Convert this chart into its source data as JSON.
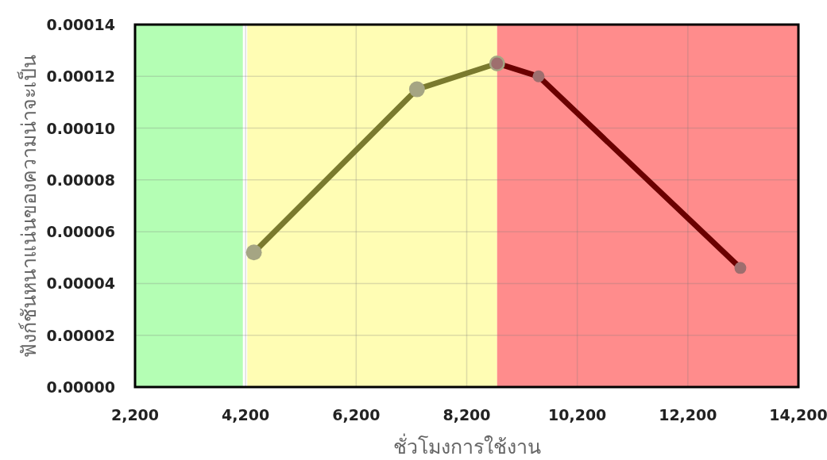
{
  "chart_data": {
    "type": "line",
    "xlabel": "ชั่วโมงการใช้งาน",
    "ylabel": "ฟังก์ชันหนาแน่นของความน่าจะเป็น",
    "series": [
      {
        "color": "#7a7a2e",
        "x": [
          4350,
          7300,
          8750
        ],
        "values": [
          5.2e-05,
          0.000115,
          0.000125
        ]
      },
      {
        "color": "#6b0000",
        "x": [
          8750,
          9500,
          13150
        ],
        "values": [
          0.000125,
          0.00012,
          4.6e-05
        ]
      }
    ],
    "xlim": [
      2200,
      14200
    ],
    "ylim": [
      0,
      0.00014
    ],
    "xticks": [
      {
        "value": 2200,
        "label": "2,200"
      },
      {
        "value": 4200,
        "label": "4,200"
      },
      {
        "value": 6200,
        "label": "6,200"
      },
      {
        "value": 8200,
        "label": "8,200"
      },
      {
        "value": 10200,
        "label": "10,200"
      },
      {
        "value": 12200,
        "label": "12,200"
      },
      {
        "value": 14200,
        "label": "14,200"
      }
    ],
    "yticks": [
      {
        "value": 0,
        "label": "0.00000"
      },
      {
        "value": 2e-05,
        "label": "0.00002"
      },
      {
        "value": 4e-05,
        "label": "0.00004"
      },
      {
        "value": 6e-05,
        "label": "0.00006"
      },
      {
        "value": 8e-05,
        "label": "0.00008"
      },
      {
        "value": 0.0001,
        "label": "0.00010"
      },
      {
        "value": 0.00012,
        "label": "0.00012"
      },
      {
        "value": 0.00014,
        "label": "0.00014"
      }
    ],
    "bands": [
      {
        "axis": "x",
        "from": 2200,
        "to": 4150,
        "color": "#b4feb4"
      },
      {
        "axis": "x",
        "from": 4230,
        "to": 8750,
        "color": "#fffdb4"
      },
      {
        "axis": "x",
        "from": 8750,
        "to": 14200,
        "color": "#ff8c8c"
      }
    ],
    "grid": true,
    "marker": "circle",
    "line_style": "solid"
  }
}
